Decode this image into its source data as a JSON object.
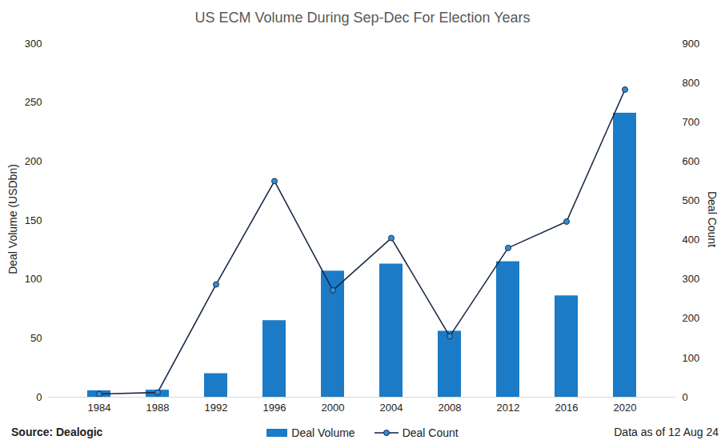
{
  "chart_data": {
    "type": "bar",
    "title": "US ECM Volume During Sep-Dec For Election Years",
    "y_label": "Deal Volume (USDbn)",
    "y2_label": "Deal Count",
    "categories": [
      "1984",
      "1988",
      "1992",
      "1996",
      "2000",
      "2004",
      "2008",
      "2012",
      "2016",
      "2020"
    ],
    "series": [
      {
        "name": "Deal Volume",
        "type": "bar",
        "color": "#1b7bc6",
        "values": [
          5.5,
          6,
          20,
          65,
          107,
          113,
          56,
          115,
          86,
          241
        ]
      },
      {
        "name": "Deal Count",
        "type": "line",
        "axis": "y2",
        "color": "#1c2b4a",
        "marker": "circle",
        "values": [
          8,
          12,
          287,
          550,
          272,
          405,
          155,
          380,
          447,
          783
        ]
      }
    ],
    "ylim": [
      0,
      300
    ],
    "yticks": [
      0,
      50,
      100,
      150,
      200,
      250,
      300
    ],
    "y2lim": [
      0,
      900
    ],
    "y2ticks": [
      0,
      100,
      200,
      300,
      400,
      500,
      600,
      700,
      800,
      900
    ],
    "grid": false,
    "legend": "bottom",
    "annotations": [
      "Source: Dealogic",
      "Data as of 12 Aug 24"
    ]
  }
}
